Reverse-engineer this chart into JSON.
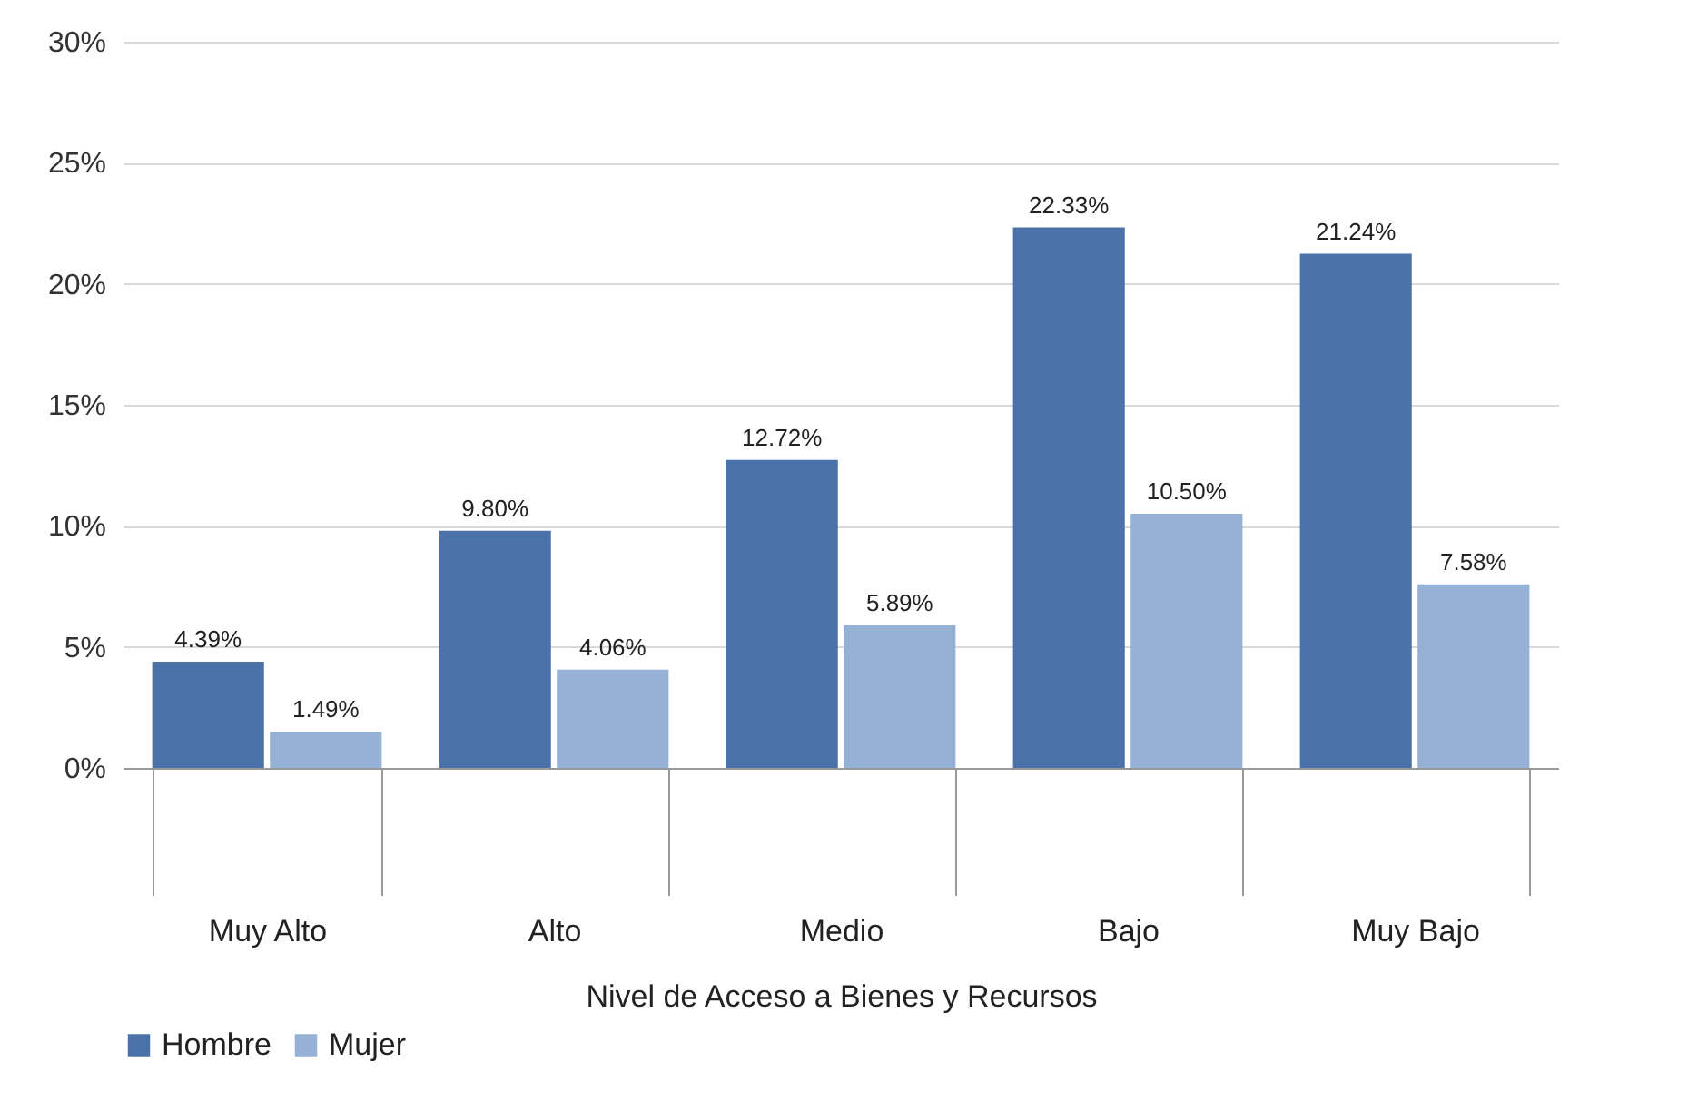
{
  "chart_data": {
    "type": "bar",
    "xlabel": "Nivel de Acceso a Bienes y Recursos",
    "categories": [
      "Muy Alto",
      "Alto",
      "Medio",
      "Bajo",
      "Muy Bajo"
    ],
    "series": [
      {
        "name": "Hombre",
        "color": "#4a72a8",
        "values": [
          4.39,
          9.8,
          12.72,
          22.33,
          21.24
        ],
        "value_labels": [
          "4.39%",
          "9.80%",
          "12.72%",
          "22.33%",
          "21.24%"
        ]
      },
      {
        "name": "Mujer",
        "color": "#95b1d6",
        "values": [
          1.49,
          4.06,
          5.89,
          10.5,
          7.58
        ],
        "value_labels": [
          "1.49%",
          "4.06%",
          "5.89%",
          "10.50%",
          "7.58%"
        ]
      }
    ],
    "ylim": [
      0,
      30
    ],
    "yticks": [
      {
        "value": 0,
        "label": "0%"
      },
      {
        "value": 5,
        "label": "5%"
      },
      {
        "value": 10,
        "label": "10%"
      },
      {
        "value": 15,
        "label": "15%"
      },
      {
        "value": 20,
        "label": "20%"
      },
      {
        "value": 25,
        "label": "25%"
      },
      {
        "value": 30,
        "label": "30%"
      }
    ],
    "grid": "y",
    "legend": "bottom"
  }
}
